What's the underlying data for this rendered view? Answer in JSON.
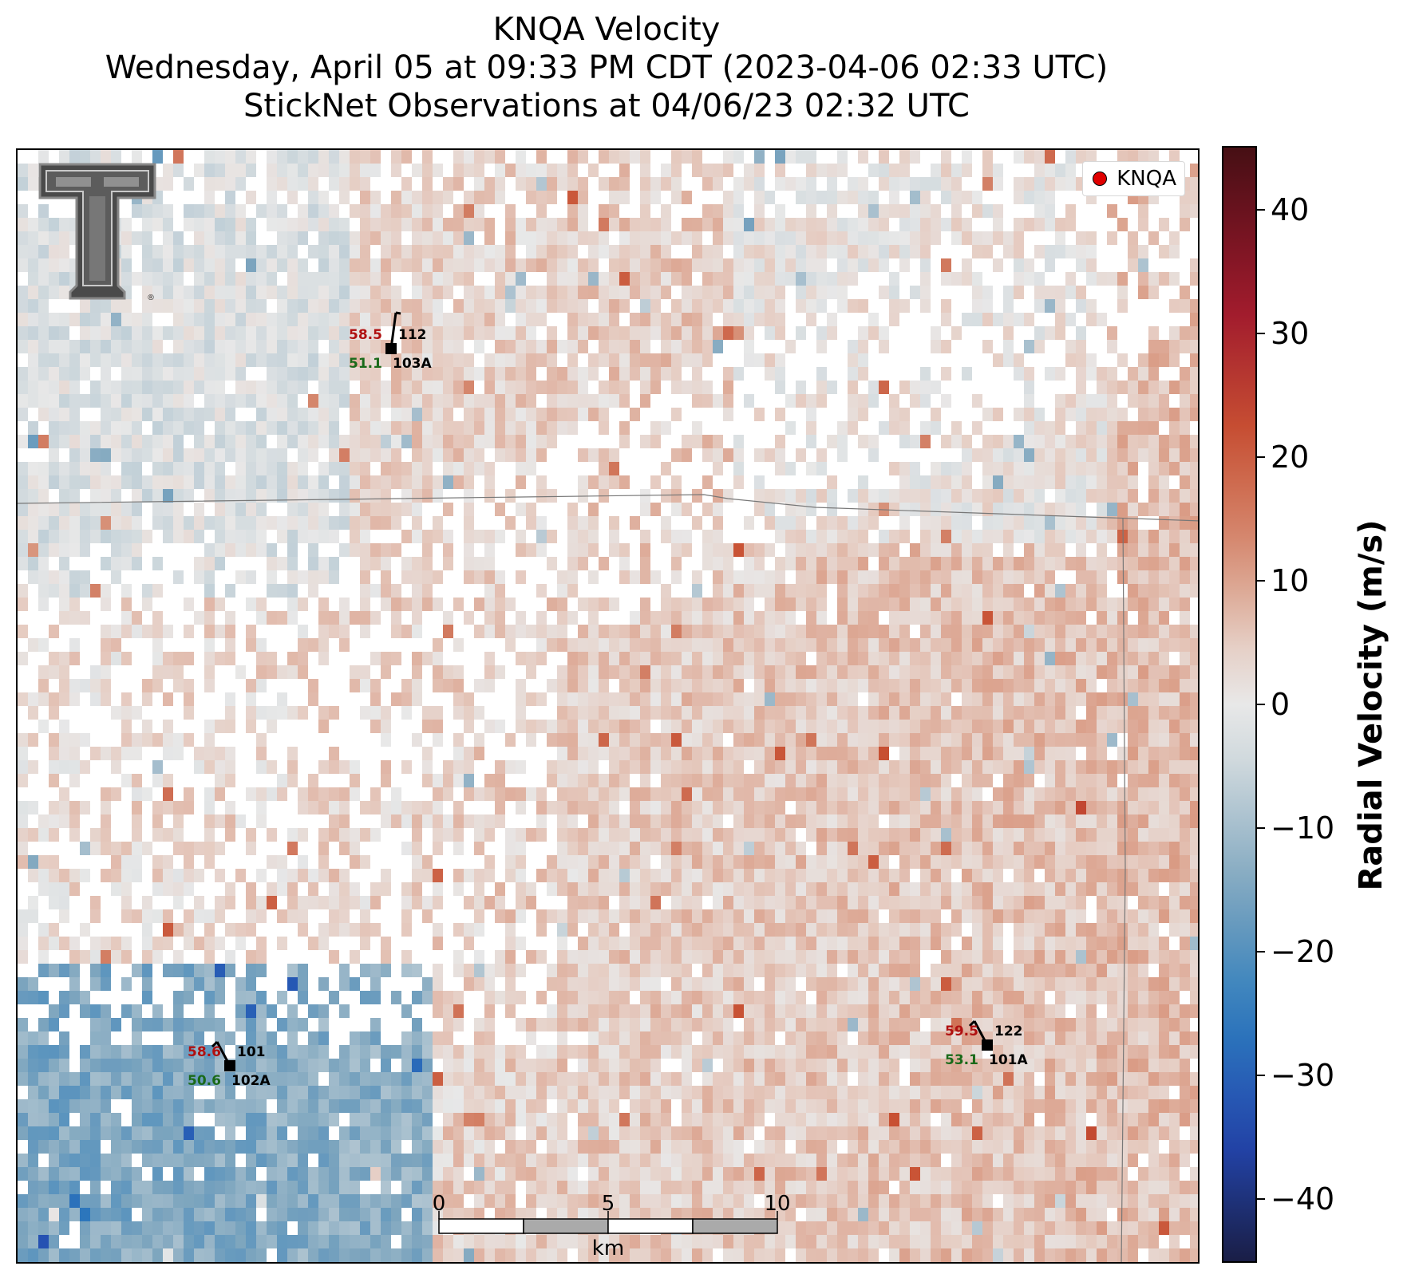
{
  "title": {
    "line1": "KNQA Velocity",
    "line2": "Wednesday, April 05 at 09:33 PM CDT (2023-04-06 02:33 UTC)",
    "line3": "StickNet Observations at 04/06/23 02:32 UTC"
  },
  "legend": {
    "label": "KNQA",
    "marker_color": "#e00000"
  },
  "colorbar": {
    "label": "Radial Velocity (m/s)",
    "min": -45,
    "max": 45,
    "ticks": [
      "40",
      "30",
      "20",
      "10",
      "0",
      "−10",
      "−20",
      "−30",
      "−40"
    ],
    "tick_values": [
      40,
      30,
      20,
      10,
      0,
      -10,
      -20,
      -30,
      -40
    ]
  },
  "stations": [
    {
      "id": "112",
      "probe": "103A",
      "temp": "58.5",
      "dew": "51.1"
    },
    {
      "id": "101",
      "probe": "102A",
      "temp": "58.6",
      "dew": "50.6"
    },
    {
      "id": "122",
      "probe": "101A",
      "temp": "59.5",
      "dew": "53.1"
    }
  ],
  "scalebar": {
    "labels": [
      "0",
      "5",
      "10"
    ],
    "unit": "km"
  },
  "colors": {
    "temp": "#b01010",
    "dew": "#1a6a1a"
  }
}
